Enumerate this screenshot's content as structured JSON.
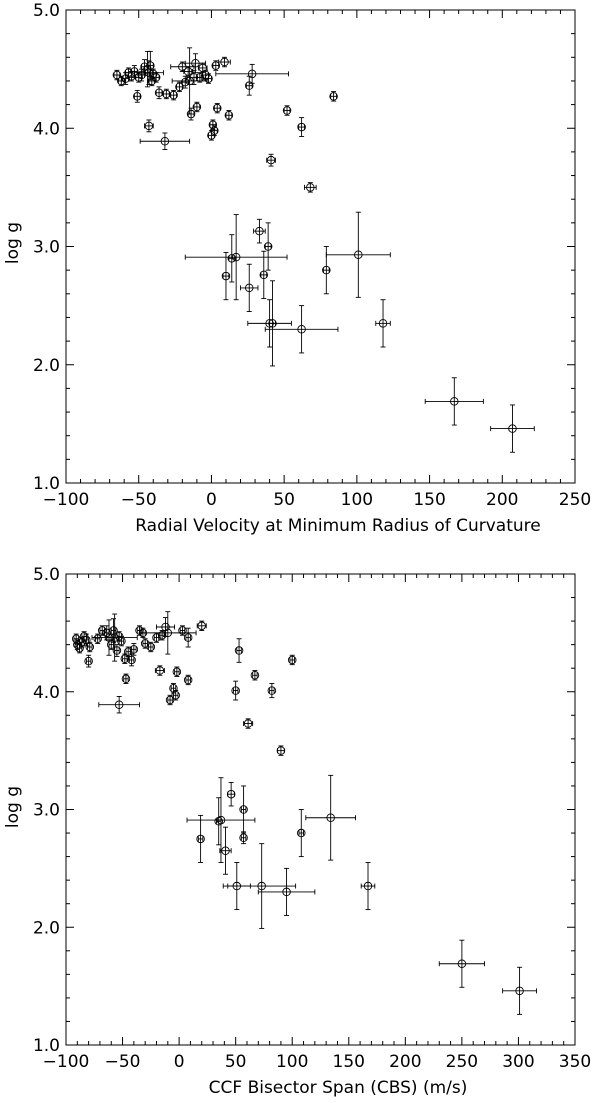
{
  "chart_data": [
    {
      "type": "scatter",
      "title": "",
      "xlabel": "Radial Velocity at Minimum Radius of Curvature",
      "ylabel": "log g",
      "xlim": [
        -100,
        250
      ],
      "ylim": [
        1.0,
        5.0
      ],
      "xticks": [
        -100,
        -50,
        0,
        50,
        100,
        150,
        200,
        250
      ],
      "xtick_labels": [
        "−100",
        "−50",
        "0",
        "50",
        "100",
        "150",
        "200",
        "250"
      ],
      "yticks": [
        1.0,
        2.0,
        3.0,
        4.0,
        5.0
      ],
      "ytick_labels": [
        "1.0",
        "2.0",
        "3.0",
        "4.0",
        "5.0"
      ],
      "points": [
        {
          "x": -65,
          "y": 4.45,
          "xerr": 2,
          "yerr": 0.04
        },
        {
          "x": -62,
          "y": 4.4,
          "xerr": 2,
          "yerr": 0.04
        },
        {
          "x": -59,
          "y": 4.42,
          "xerr": 2,
          "yerr": 0.05
        },
        {
          "x": -57,
          "y": 4.47,
          "xerr": 2,
          "yerr": 0.04
        },
        {
          "x": -55,
          "y": 4.44,
          "xerr": 2,
          "yerr": 0.04
        },
        {
          "x": -53,
          "y": 4.48,
          "xerr": 2,
          "yerr": 0.05
        },
        {
          "x": -51,
          "y": 4.27,
          "xerr": 2,
          "yerr": 0.05
        },
        {
          "x": -50,
          "y": 4.43,
          "xerr": 2,
          "yerr": 0.04
        },
        {
          "x": -48,
          "y": 4.45,
          "xerr": 2,
          "yerr": 0.05
        },
        {
          "x": -46,
          "y": 4.52,
          "xerr": 2,
          "yerr": 0.06
        },
        {
          "x": -44,
          "y": 4.5,
          "xerr": 2,
          "yerr": 0.15
        },
        {
          "x": -43,
          "y": 4.47,
          "xerr": 10,
          "yerr": 0.1
        },
        {
          "x": -42,
          "y": 4.53,
          "xerr": 2,
          "yerr": 0.12
        },
        {
          "x": -41,
          "y": 4.4,
          "xerr": 2,
          "yerr": 0.04
        },
        {
          "x": -40,
          "y": 4.46,
          "xerr": 2,
          "yerr": 0.04
        },
        {
          "x": -38,
          "y": 4.43,
          "xerr": 2,
          "yerr": 0.04
        },
        {
          "x": -36,
          "y": 4.3,
          "xerr": 2,
          "yerr": 0.05
        },
        {
          "x": -43,
          "y": 4.02,
          "xerr": 3,
          "yerr": 0.05
        },
        {
          "x": -32,
          "y": 3.89,
          "xerr": 17,
          "yerr": 0.07
        },
        {
          "x": -31,
          "y": 4.29,
          "xerr": 2,
          "yerr": 0.04
        },
        {
          "x": -26,
          "y": 4.28,
          "xerr": 2,
          "yerr": 0.04
        },
        {
          "x": -22,
          "y": 4.35,
          "xerr": 2,
          "yerr": 0.04
        },
        {
          "x": -20,
          "y": 4.52,
          "xerr": 8,
          "yerr": 0.04
        },
        {
          "x": -18,
          "y": 4.39,
          "xerr": 2,
          "yerr": 0.05
        },
        {
          "x": -16,
          "y": 4.48,
          "xerr": 3,
          "yerr": 0.04
        },
        {
          "x": -15,
          "y": 4.4,
          "xerr": 12,
          "yerr": 0.28
        },
        {
          "x": -14,
          "y": 4.12,
          "xerr": 2,
          "yerr": 0.05
        },
        {
          "x": -12,
          "y": 4.43,
          "xerr": 5,
          "yerr": 0.06
        },
        {
          "x": -11,
          "y": 4.55,
          "xerr": 7,
          "yerr": 0.08
        },
        {
          "x": -10,
          "y": 4.18,
          "xerr": 2,
          "yerr": 0.04
        },
        {
          "x": -8,
          "y": 4.43,
          "xerr": 2,
          "yerr": 0.04
        },
        {
          "x": -6,
          "y": 4.51,
          "xerr": 3,
          "yerr": 0.04
        },
        {
          "x": -4,
          "y": 4.45,
          "xerr": 2,
          "yerr": 0.04
        },
        {
          "x": -2,
          "y": 4.42,
          "xerr": 2,
          "yerr": 0.04
        },
        {
          "x": 0,
          "y": 3.94,
          "xerr": 2,
          "yerr": 0.04
        },
        {
          "x": 1,
          "y": 4.03,
          "xerr": 2,
          "yerr": 0.04
        },
        {
          "x": 2,
          "y": 3.98,
          "xerr": 2,
          "yerr": 0.04
        },
        {
          "x": 3,
          "y": 4.53,
          "xerr": 2,
          "yerr": 0.04
        },
        {
          "x": 4,
          "y": 4.17,
          "xerr": 2,
          "yerr": 0.04
        },
        {
          "x": 9,
          "y": 4.56,
          "xerr": 4,
          "yerr": 0.04
        },
        {
          "x": 12,
          "y": 4.11,
          "xerr": 2,
          "yerr": 0.04
        },
        {
          "x": 26,
          "y": 4.36,
          "xerr": 2,
          "yerr": 0.08
        },
        {
          "x": 28,
          "y": 4.46,
          "xerr": 25,
          "yerr": 0.08
        },
        {
          "x": 52,
          "y": 4.15,
          "xerr": 2,
          "yerr": 0.04
        },
        {
          "x": 62,
          "y": 4.01,
          "xerr": 2,
          "yerr": 0.08
        },
        {
          "x": 84,
          "y": 4.27,
          "xerr": 2,
          "yerr": 0.04
        },
        {
          "x": 41,
          "y": 3.73,
          "xerr": 3,
          "yerr": 0.05
        },
        {
          "x": 68,
          "y": 3.5,
          "xerr": 4,
          "yerr": 0.04
        },
        {
          "x": 10,
          "y": 2.75,
          "xerr": 2,
          "yerr": 0.2
        },
        {
          "x": 14,
          "y": 2.9,
          "xerr": 2,
          "yerr": 0.2
        },
        {
          "x": 17,
          "y": 2.91,
          "xerr": 35,
          "yerr": 0.36
        },
        {
          "x": 26,
          "y": 2.65,
          "xerr": 6,
          "yerr": 0.2
        },
        {
          "x": 33,
          "y": 3.13,
          "xerr": 4,
          "yerr": 0.1
        },
        {
          "x": 36,
          "y": 2.76,
          "xerr": 2,
          "yerr": 0.2
        },
        {
          "x": 39,
          "y": 3.0,
          "xerr": 2,
          "yerr": 0.2
        },
        {
          "x": 40,
          "y": 2.35,
          "xerr": 15,
          "yerr": 0.2
        },
        {
          "x": 42,
          "y": 2.35,
          "xerr": 2,
          "yerr": 0.36
        },
        {
          "x": 62,
          "y": 2.3,
          "xerr": 25,
          "yerr": 0.2
        },
        {
          "x": 79,
          "y": 2.8,
          "xerr": 2,
          "yerr": 0.2
        },
        {
          "x": 101,
          "y": 2.93,
          "xerr": 22,
          "yerr": 0.36
        },
        {
          "x": 118,
          "y": 2.35,
          "xerr": 5,
          "yerr": 0.2
        },
        {
          "x": 167,
          "y": 1.69,
          "xerr": 20,
          "yerr": 0.2
        },
        {
          "x": 207,
          "y": 1.46,
          "xerr": 15,
          "yerr": 0.2
        }
      ]
    },
    {
      "type": "scatter",
      "title": "",
      "xlabel": "CCF Bisector Span (CBS) (m/s)",
      "ylabel": "log g",
      "xlim": [
        -100,
        350
      ],
      "ylim": [
        1.0,
        5.0
      ],
      "xticks": [
        -100,
        -50,
        0,
        50,
        100,
        150,
        200,
        250,
        300,
        350
      ],
      "xtick_labels": [
        "−100",
        "−50",
        "0",
        "50",
        "100",
        "150",
        "200",
        "250",
        "300",
        "350"
      ],
      "yticks": [
        1.0,
        2.0,
        3.0,
        4.0,
        5.0
      ],
      "ytick_labels": [
        "1.0",
        "2.0",
        "3.0",
        "4.0",
        "5.0"
      ],
      "points": [
        {
          "x": -91,
          "y": 4.45,
          "xerr": 2,
          "yerr": 0.04
        },
        {
          "x": -90,
          "y": 4.4,
          "xerr": 2,
          "yerr": 0.04
        },
        {
          "x": -88,
          "y": 4.37,
          "xerr": 2,
          "yerr": 0.04
        },
        {
          "x": -86,
          "y": 4.42,
          "xerr": 2,
          "yerr": 0.04
        },
        {
          "x": -84,
          "y": 4.47,
          "xerr": 2,
          "yerr": 0.04
        },
        {
          "x": -82,
          "y": 4.44,
          "xerr": 2,
          "yerr": 0.05
        },
        {
          "x": -80,
          "y": 4.26,
          "xerr": 2,
          "yerr": 0.05
        },
        {
          "x": -79,
          "y": 4.38,
          "xerr": 2,
          "yerr": 0.04
        },
        {
          "x": -72,
          "y": 4.45,
          "xerr": 2,
          "yerr": 0.04
        },
        {
          "x": -68,
          "y": 4.52,
          "xerr": 2,
          "yerr": 0.04
        },
        {
          "x": -64,
          "y": 4.5,
          "xerr": 2,
          "yerr": 0.06
        },
        {
          "x": -62,
          "y": 4.46,
          "xerr": 2,
          "yerr": 0.15
        },
        {
          "x": -60,
          "y": 4.4,
          "xerr": 2,
          "yerr": 0.04
        },
        {
          "x": -58,
          "y": 4.52,
          "xerr": 2,
          "yerr": 0.1
        },
        {
          "x": -57,
          "y": 4.46,
          "xerr": 20,
          "yerr": 0.2
        },
        {
          "x": -55,
          "y": 4.35,
          "xerr": 2,
          "yerr": 0.05
        },
        {
          "x": -53,
          "y": 4.47,
          "xerr": 2,
          "yerr": 0.04
        },
        {
          "x": -51,
          "y": 4.43,
          "xerr": 2,
          "yerr": 0.04
        },
        {
          "x": -48,
          "y": 4.28,
          "xerr": 2,
          "yerr": 0.04
        },
        {
          "x": -45,
          "y": 4.34,
          "xerr": 2,
          "yerr": 0.04
        },
        {
          "x": -42,
          "y": 4.27,
          "xerr": 2,
          "yerr": 0.05
        },
        {
          "x": -40,
          "y": 4.36,
          "xerr": 2,
          "yerr": 0.05
        },
        {
          "x": -35,
          "y": 4.52,
          "xerr": 2,
          "yerr": 0.04
        },
        {
          "x": -32,
          "y": 4.5,
          "xerr": 2,
          "yerr": 0.04
        },
        {
          "x": -30,
          "y": 4.41,
          "xerr": 2,
          "yerr": 0.04
        },
        {
          "x": -25,
          "y": 4.38,
          "xerr": 2,
          "yerr": 0.04
        },
        {
          "x": -20,
          "y": 4.46,
          "xerr": 2,
          "yerr": 0.04
        },
        {
          "x": -17,
          "y": 4.18,
          "xerr": 4,
          "yerr": 0.04
        },
        {
          "x": -15,
          "y": 4.48,
          "xerr": 2,
          "yerr": 0.04
        },
        {
          "x": -12,
          "y": 4.55,
          "xerr": 8,
          "yerr": 0.08
        },
        {
          "x": -10,
          "y": 4.5,
          "xerr": 25,
          "yerr": 0.18
        },
        {
          "x": -8,
          "y": 3.93,
          "xerr": 2,
          "yerr": 0.04
        },
        {
          "x": -5,
          "y": 4.03,
          "xerr": 2,
          "yerr": 0.04
        },
        {
          "x": -3,
          "y": 3.97,
          "xerr": 2,
          "yerr": 0.04
        },
        {
          "x": -2,
          "y": 4.17,
          "xerr": 2,
          "yerr": 0.04
        },
        {
          "x": 3,
          "y": 4.52,
          "xerr": 2,
          "yerr": 0.04
        },
        {
          "x": 8,
          "y": 4.46,
          "xerr": 2,
          "yerr": 0.08
        },
        {
          "x": 8,
          "y": 4.1,
          "xerr": 2,
          "yerr": 0.04
        },
        {
          "x": 20,
          "y": 4.56,
          "xerr": 4,
          "yerr": 0.04
        },
        {
          "x": -47,
          "y": 4.11,
          "xerr": 2,
          "yerr": 0.04
        },
        {
          "x": -53,
          "y": 3.89,
          "xerr": 18,
          "yerr": 0.07
        },
        {
          "x": 50,
          "y": 4.01,
          "xerr": 2,
          "yerr": 0.08
        },
        {
          "x": 53,
          "y": 4.35,
          "xerr": 2,
          "yerr": 0.1
        },
        {
          "x": 67,
          "y": 4.14,
          "xerr": 2,
          "yerr": 0.04
        },
        {
          "x": 82,
          "y": 4.01,
          "xerr": 2,
          "yerr": 0.06
        },
        {
          "x": 100,
          "y": 4.27,
          "xerr": 2,
          "yerr": 0.04
        },
        {
          "x": 61,
          "y": 3.73,
          "xerr": 4,
          "yerr": 0.04
        },
        {
          "x": 90,
          "y": 3.5,
          "xerr": 3,
          "yerr": 0.04
        },
        {
          "x": 19,
          "y": 2.75,
          "xerr": 2,
          "yerr": 0.2
        },
        {
          "x": 35,
          "y": 2.9,
          "xerr": 2,
          "yerr": 0.2
        },
        {
          "x": 37,
          "y": 2.91,
          "xerr": 30,
          "yerr": 0.36
        },
        {
          "x": 41,
          "y": 2.65,
          "xerr": 5,
          "yerr": 0.2
        },
        {
          "x": 46,
          "y": 3.13,
          "xerr": 3,
          "yerr": 0.1
        },
        {
          "x": 57,
          "y": 3.0,
          "xerr": 2,
          "yerr": 0.2
        },
        {
          "x": 57,
          "y": 2.76,
          "xerr": 2,
          "yerr": 0.05
        },
        {
          "x": 51,
          "y": 2.35,
          "xerr": 12,
          "yerr": 0.2
        },
        {
          "x": 73,
          "y": 2.35,
          "xerr": 30,
          "yerr": 0.36
        },
        {
          "x": 95,
          "y": 2.3,
          "xerr": 25,
          "yerr": 0.2
        },
        {
          "x": 108,
          "y": 2.8,
          "xerr": 2,
          "yerr": 0.2
        },
        {
          "x": 134,
          "y": 2.93,
          "xerr": 22,
          "yerr": 0.36
        },
        {
          "x": 167,
          "y": 2.35,
          "xerr": 6,
          "yerr": 0.2
        },
        {
          "x": 250,
          "y": 1.69,
          "xerr": 20,
          "yerr": 0.2
        },
        {
          "x": 301,
          "y": 1.46,
          "xerr": 15,
          "yerr": 0.2
        }
      ]
    }
  ]
}
